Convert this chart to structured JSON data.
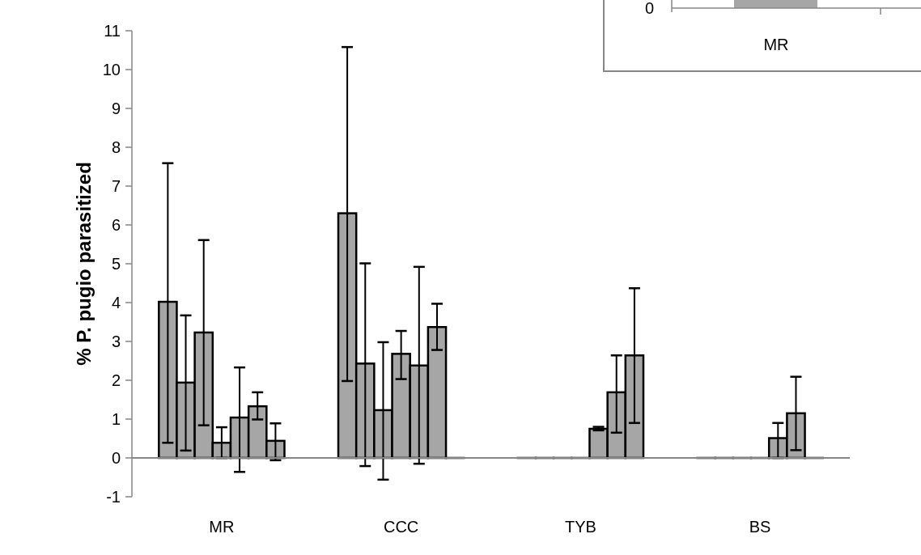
{
  "chart_data": [
    {
      "type": "bar",
      "ylabel": "% P. pugio parasitized",
      "categories": [
        "MR",
        "CCC",
        "TYB",
        "BS"
      ],
      "ylim": [
        -1,
        11
      ],
      "yticks": [
        -1,
        0,
        1,
        2,
        3,
        4,
        5,
        6,
        7,
        8,
        9,
        10,
        11
      ],
      "series": [
        {
          "color": "#a6a6a6",
          "values": [
            4.02,
            6.3,
            0,
            0
          ],
          "errors": [
            [
              0.39,
              7.59
            ],
            [
              1.98,
              10.58
            ],
            null,
            null
          ]
        },
        {
          "color": "#a6a6a6",
          "values": [
            1.94,
            2.43,
            0,
            0
          ],
          "errors": [
            [
              0.19,
              3.67
            ],
            [
              -0.21,
              5.01
            ],
            null,
            null
          ]
        },
        {
          "color": "#a6a6a6",
          "values": [
            3.23,
            1.23,
            0,
            0
          ],
          "errors": [
            [
              0.84,
              5.61
            ],
            [
              -0.56,
              2.98
            ],
            null,
            null
          ]
        },
        {
          "color": "#a6a6a6",
          "values": [
            0.39,
            2.68,
            0,
            0
          ],
          "errors": [
            [
              0,
              0.79
            ],
            [
              2.03,
              3.27
            ],
            null,
            null
          ]
        },
        {
          "color": "#a6a6a6",
          "values": [
            1.04,
            2.38,
            0.75,
            0.51
          ],
          "errors": [
            [
              -0.36,
              2.33
            ],
            [
              -0.15,
              4.92
            ],
            [
              0.71,
              0.8
            ],
            [
              0,
              0.9
            ]
          ]
        },
        {
          "color": "#a6a6a6",
          "values": [
            1.33,
            3.37,
            1.69,
            1.15
          ],
          "errors": [
            [
              0.99,
              1.69
            ],
            [
              2.78,
              3.97
            ],
            [
              0.65,
              2.64
            ],
            [
              0.2,
              2.09
            ]
          ]
        },
        {
          "color": "#a6a6a6",
          "values": [
            0.44,
            0,
            2.64,
            0
          ],
          "errors": [
            [
              -0.06,
              0.89
            ],
            null,
            [
              0.9,
              4.37
            ],
            null
          ]
        }
      ]
    },
    {
      "type": "other",
      "annotations": [
        "0",
        "MR"
      ]
    }
  ]
}
